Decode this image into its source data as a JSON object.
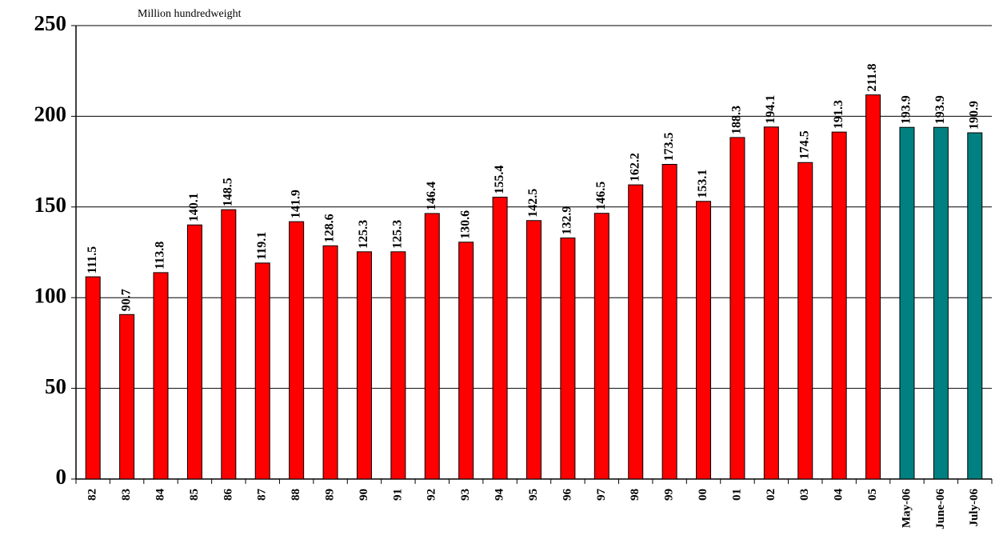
{
  "chart_data": {
    "type": "bar",
    "y_unit_label": "Million hundredweight",
    "categories": [
      "82",
      "83",
      "84",
      "85",
      "86",
      "87",
      "88",
      "89",
      "90",
      "91",
      "92",
      "93",
      "94",
      "95",
      "96",
      "97",
      "98",
      "99",
      "00",
      "01",
      "02",
      "03",
      "04",
      "05",
      "May-06",
      "June-06",
      "July-06"
    ],
    "values": [
      111.5,
      90.7,
      113.8,
      140.1,
      148.5,
      119.1,
      141.9,
      128.6,
      125.3,
      125.3,
      146.4,
      130.6,
      155.4,
      142.5,
      132.9,
      146.5,
      162.2,
      173.5,
      153.1,
      188.3,
      194.1,
      174.5,
      191.3,
      211.8,
      193.9,
      193.9,
      190.9
    ],
    "colors": [
      "#ff0000",
      "#ff0000",
      "#ff0000",
      "#ff0000",
      "#ff0000",
      "#ff0000",
      "#ff0000",
      "#ff0000",
      "#ff0000",
      "#ff0000",
      "#ff0000",
      "#ff0000",
      "#ff0000",
      "#ff0000",
      "#ff0000",
      "#ff0000",
      "#ff0000",
      "#ff0000",
      "#ff0000",
      "#ff0000",
      "#ff0000",
      "#ff0000",
      "#ff0000",
      "#ff0000",
      "#008080",
      "#008080",
      "#008080"
    ],
    "ylim": [
      0,
      250
    ],
    "yticks": [
      0,
      50,
      100,
      150,
      200,
      250
    ],
    "grid": true
  }
}
